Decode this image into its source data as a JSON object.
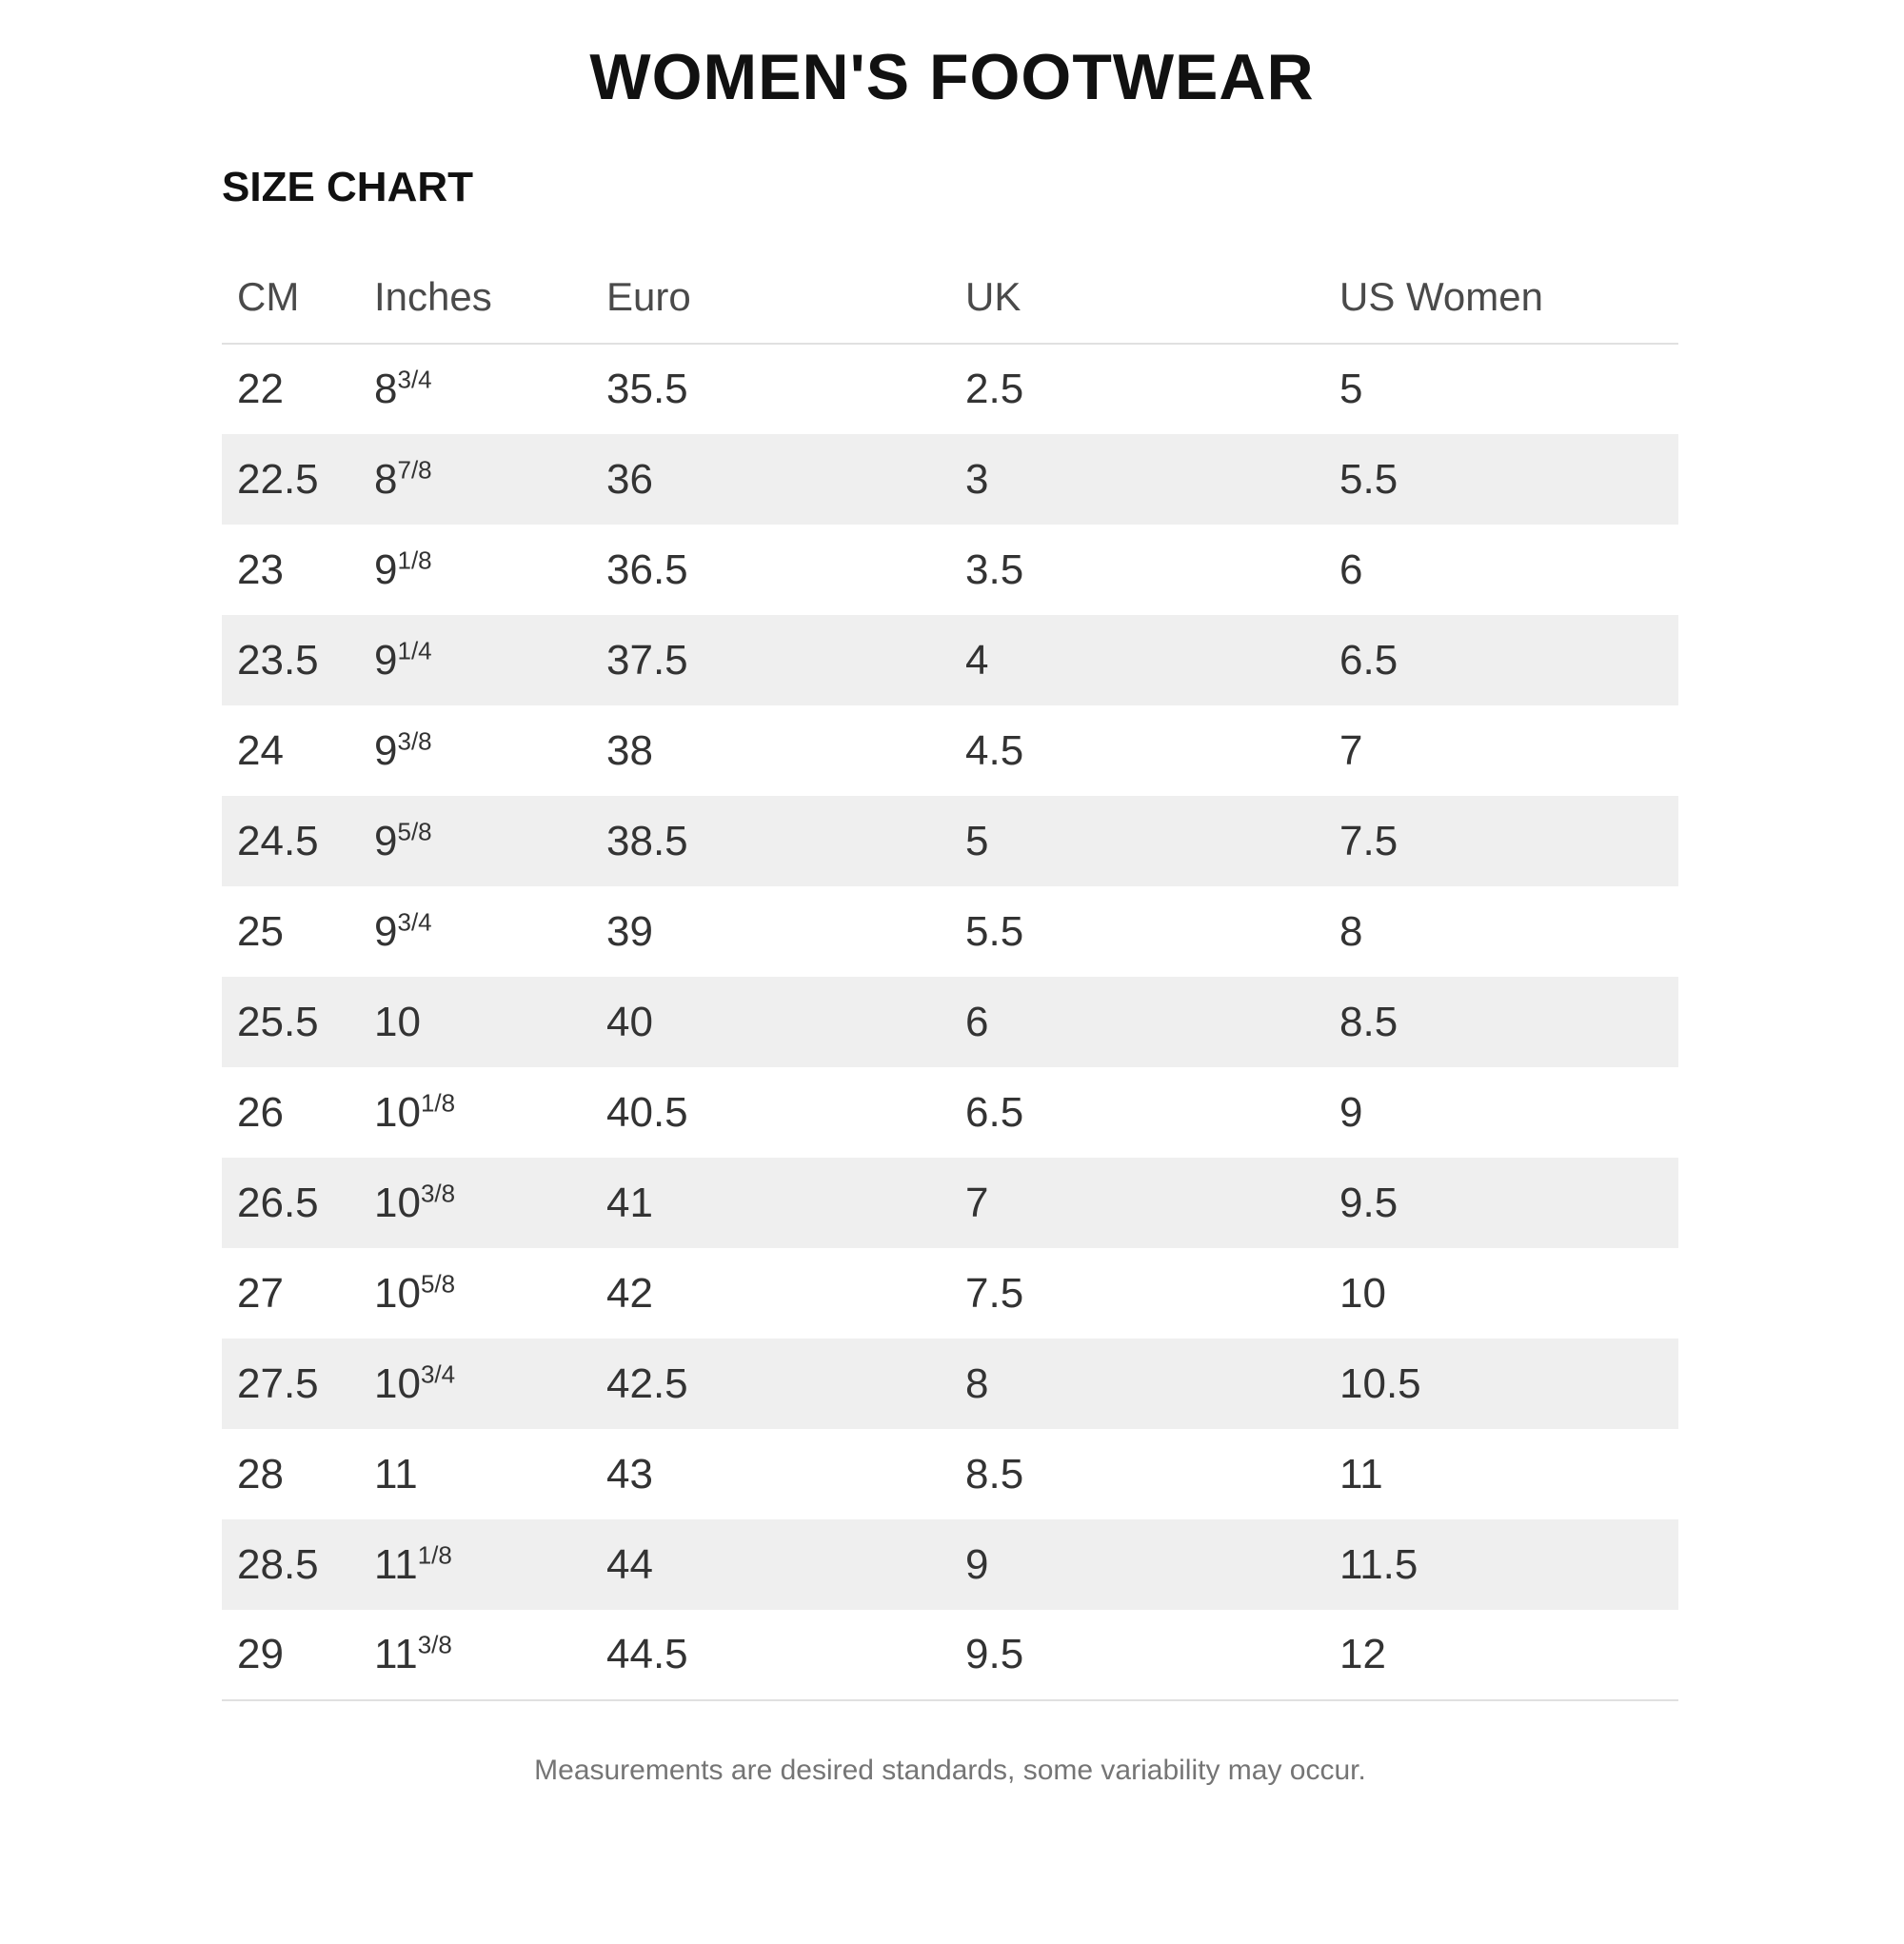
{
  "page": {
    "title": "WOMEN'S FOOTWEAR",
    "section_title": "SIZE CHART",
    "footnote": "Measurements are desired standards, some variability may occur."
  },
  "chart_data": {
    "type": "table",
    "title": "WOMEN'S FOOTWEAR",
    "subtitle": "SIZE CHART",
    "columns": [
      "CM",
      "Inches",
      "Euro",
      "UK",
      "US Women"
    ],
    "rows": [
      [
        "22",
        "8 3/4",
        "35.5",
        "2.5",
        "5"
      ],
      [
        "22.5",
        "8 7/8",
        "36",
        "3",
        "5.5"
      ],
      [
        "23",
        "9 1/8",
        "36.5",
        "3.5",
        "6"
      ],
      [
        "23.5",
        "9 1/4",
        "37.5",
        "4",
        "6.5"
      ],
      [
        "24",
        "9 3/8",
        "38",
        "4.5",
        "7"
      ],
      [
        "24.5",
        "9 5/8",
        "38.5",
        "5",
        "7.5"
      ],
      [
        "25",
        "9 3/4",
        "39",
        "5.5",
        "8"
      ],
      [
        "25.5",
        "10",
        "40",
        "6",
        "8.5"
      ],
      [
        "26",
        "10 1/8",
        "40.5",
        "6.5",
        "9"
      ],
      [
        "26.5",
        "10 3/8",
        "41",
        "7",
        "9.5"
      ],
      [
        "27",
        "10 5/8",
        "42",
        "7.5",
        "10"
      ],
      [
        "27.5",
        "10 3/4",
        "42.5",
        "8",
        "10.5"
      ],
      [
        "28",
        "11",
        "43",
        "8.5",
        "11"
      ],
      [
        "28.5",
        "11 1/8",
        "44",
        "9",
        "11.5"
      ],
      [
        "29",
        "11 3/8",
        "44.5",
        "9.5",
        "12"
      ]
    ],
    "layout": {
      "striped_rows": "even",
      "legend": "none",
      "grid": "header-and-bottom-divider-only"
    },
    "colors": {
      "row_stripe": "#efefef",
      "divider": "#e0e0e0",
      "header_text": "#4a4a4a",
      "body_text": "#333333",
      "title_text": "#111111",
      "footnote_text": "#757575",
      "background": "#ffffff"
    },
    "footnote": "Measurements are desired standards, some variability may occur."
  }
}
